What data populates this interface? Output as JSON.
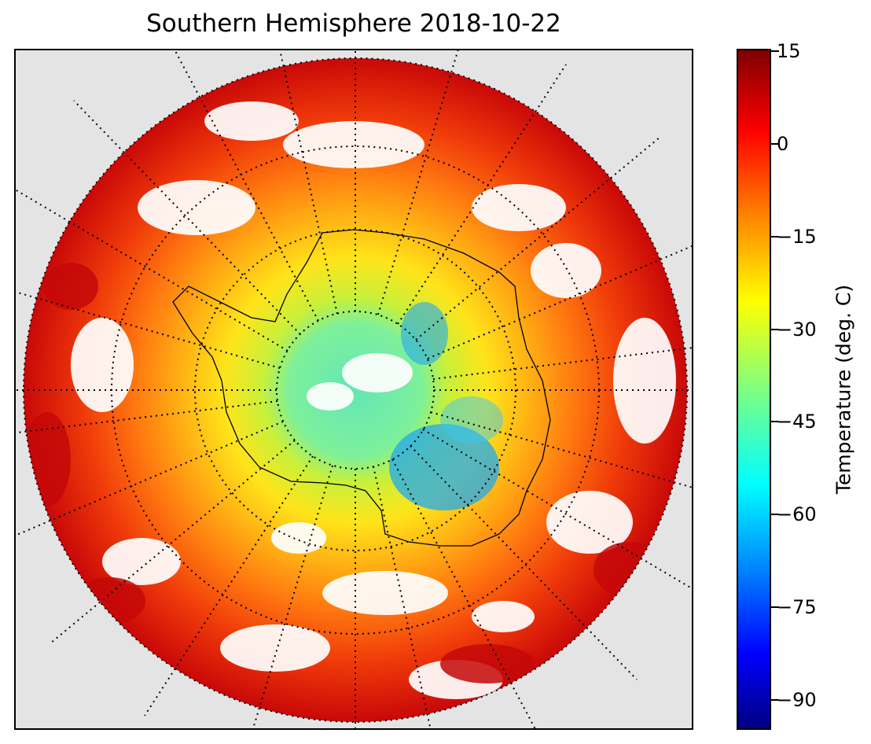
{
  "title": "Southern Hemisphere 2018-10-22",
  "colorbar": {
    "label": "Temperature (deg. C)",
    "min": -95,
    "max": 15,
    "ticks": [
      "15",
      "0",
      "−15",
      "−30",
      "−45",
      "−60",
      "−75",
      "−90"
    ],
    "tick_values": [
      15,
      0,
      -15,
      -30,
      -45,
      -60,
      -75,
      -90
    ],
    "colormap": "jet"
  },
  "map": {
    "projection": "south polar stereographic",
    "background_color": "#e4e4e4",
    "graticule_style": "dotted",
    "colors": {
      "warm": "#e82a0a",
      "hot": "#c40808",
      "orange": "#ff8f14",
      "yellow": "#ffde1a",
      "green_yellow": "#c8f03a",
      "cyan": "#3ce8c4",
      "blue": "#1fa8f2"
    }
  }
}
